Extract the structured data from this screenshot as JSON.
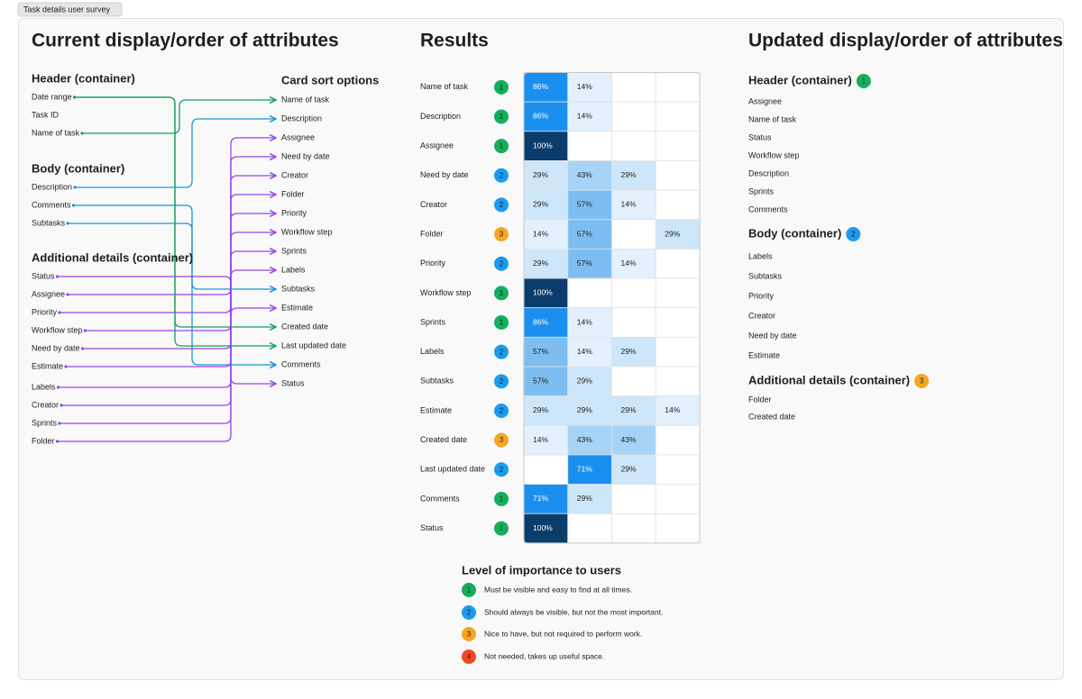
{
  "tag": "Task details user survey",
  "current": {
    "title": "Current display/order of attributes",
    "groups": [
      {
        "title": "Header (container)",
        "items": [
          "Date range",
          "Task ID",
          "Name of task"
        ]
      },
      {
        "title": "Body (container)",
        "items": [
          "Description",
          "Comments",
          "Subtasks"
        ]
      },
      {
        "title": "Additional details (container)",
        "items": [
          "Status",
          "Assignee",
          "Priority",
          "Workflow step",
          "Need by date",
          "Estimate",
          "Labels",
          "Creator",
          "Sprints",
          "Folder"
        ]
      }
    ],
    "card_sort": {
      "title": "Card sort options",
      "items": [
        "Name of task",
        "Description",
        "Assignee",
        "Need by date",
        "Creator",
        "Folder",
        "Priority",
        "Workflow step",
        "Sprints",
        "Labels",
        "Subtasks",
        "Estimate",
        "Created date",
        "Last updated date",
        "Comments",
        "Status"
      ]
    }
  },
  "results": {
    "title": "Results",
    "rows": [
      {
        "name": "Name of task",
        "level": 1,
        "cells": [
          "86%",
          "14%",
          null,
          null
        ]
      },
      {
        "name": "Description",
        "level": 1,
        "cells": [
          "86%",
          "14%",
          null,
          null
        ]
      },
      {
        "name": "Assignee",
        "level": 1,
        "cells": [
          "100%",
          null,
          null,
          null
        ]
      },
      {
        "name": "Need by date",
        "level": 2,
        "cells": [
          "29%",
          "43%",
          "29%",
          null
        ]
      },
      {
        "name": "Creator",
        "level": 2,
        "cells": [
          "29%",
          "57%",
          "14%",
          null
        ]
      },
      {
        "name": "Folder",
        "level": 3,
        "cells": [
          "14%",
          "57%",
          null,
          "29%"
        ]
      },
      {
        "name": "Priority",
        "level": 2,
        "cells": [
          "29%",
          "57%",
          "14%",
          null
        ]
      },
      {
        "name": "Workflow step",
        "level": 1,
        "cells": [
          "100%",
          null,
          null,
          null
        ]
      },
      {
        "name": "Sprints",
        "level": 1,
        "cells": [
          "86%",
          "14%",
          null,
          null
        ]
      },
      {
        "name": "Labels",
        "level": 2,
        "cells": [
          "57%",
          "14%",
          "29%",
          null
        ]
      },
      {
        "name": "Subtasks",
        "level": 2,
        "cells": [
          "57%",
          "29%",
          null,
          null
        ]
      },
      {
        "name": "Estimate",
        "level": 2,
        "cells": [
          "29%",
          "29%",
          "29%",
          "14%"
        ]
      },
      {
        "name": "Created date",
        "level": 3,
        "cells": [
          "14%",
          "43%",
          "43%",
          null
        ]
      },
      {
        "name": "Last updated date",
        "level": 2,
        "cells": [
          null,
          "71%",
          "29%",
          null
        ]
      },
      {
        "name": "Comments",
        "level": 1,
        "cells": [
          "71%",
          "29%",
          null,
          null
        ]
      },
      {
        "name": "Status",
        "level": 1,
        "cells": [
          "100%",
          null,
          null,
          null
        ]
      }
    ]
  },
  "legend": {
    "title": "Level of importance to users",
    "items": [
      {
        "level": 1,
        "text": "Must be visible and easy to find at all times."
      },
      {
        "level": 2,
        "text": "Should always be visible, but not the most important."
      },
      {
        "level": 3,
        "text": "Nice to have, but not required to perform work."
      },
      {
        "level": 4,
        "text": "Not needed, takes up useful space."
      }
    ]
  },
  "updated": {
    "title": "Updated display/order of attributes",
    "groups": [
      {
        "title": "Header (container)",
        "level": 1,
        "items": [
          "Assignee",
          "Name of task",
          "Status",
          "Workflow step",
          "Description",
          "Sprints",
          "Comments"
        ]
      },
      {
        "title": "Body (container)",
        "level": 2,
        "items": [
          "Labels",
          "Subtasks",
          "Priority",
          "Creator",
          "Need by date",
          "Estimate"
        ]
      },
      {
        "title": "Additional details (container)",
        "level": 3,
        "items": [
          "Folder",
          "Created date"
        ]
      }
    ]
  }
}
